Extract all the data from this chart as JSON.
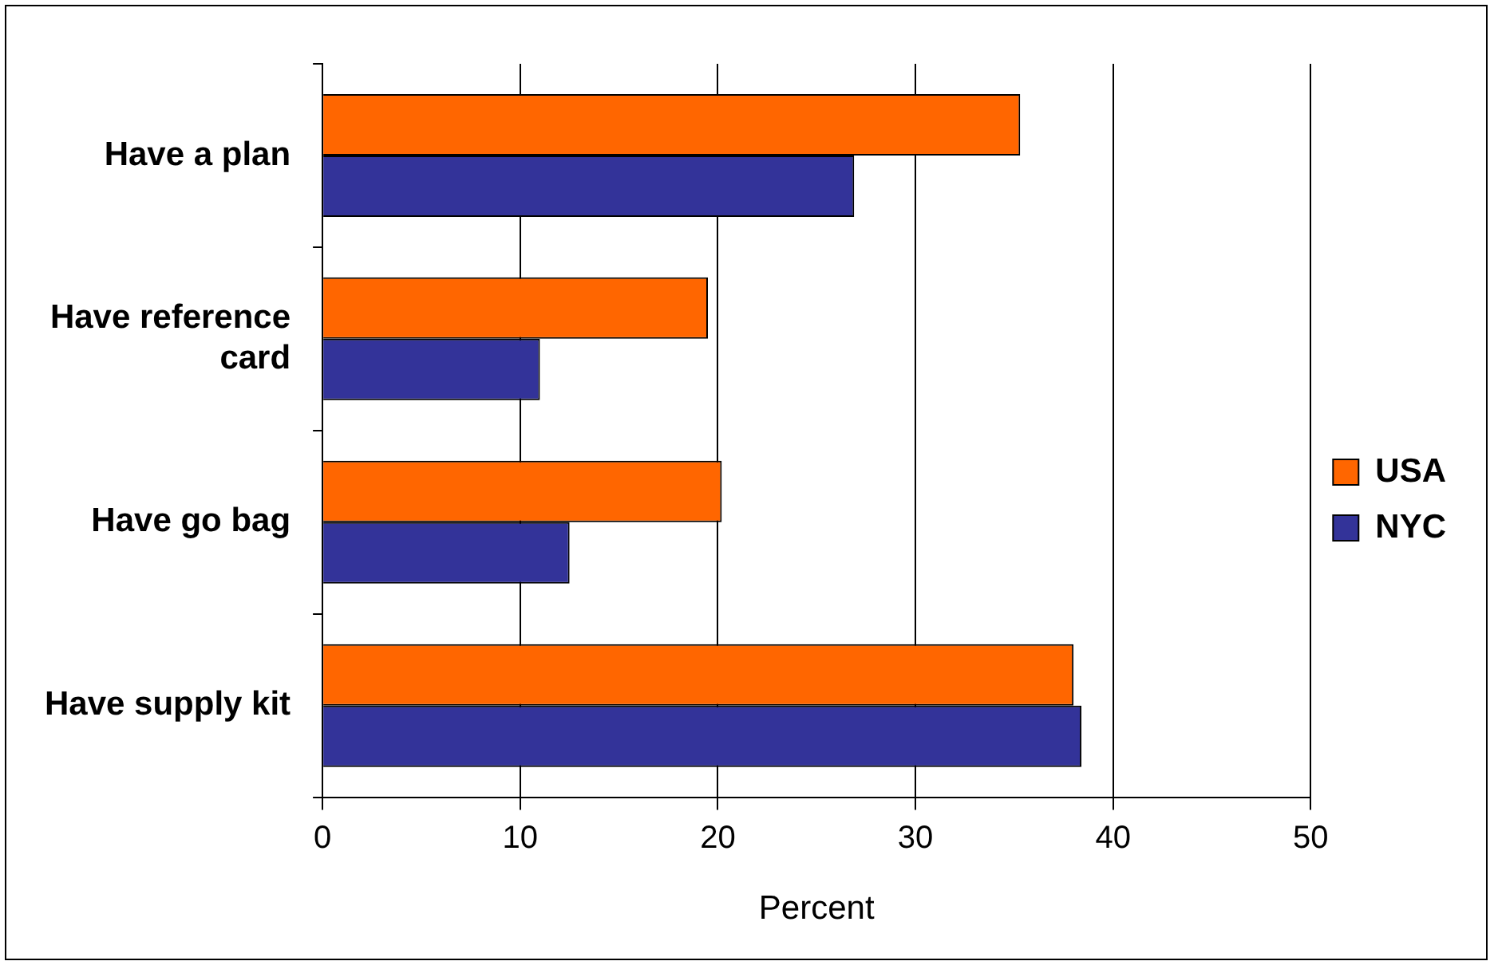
{
  "chart_data": {
    "type": "bar",
    "orientation": "horizontal",
    "xlabel": "Percent",
    "categories": [
      "Have a plan",
      "Have reference card",
      "Have go bag",
      "Have supply kit"
    ],
    "series": [
      {
        "name": "USA",
        "color": "#ff6600",
        "values": [
          35.3,
          19.5,
          20.2,
          38.0
        ]
      },
      {
        "name": "NYC",
        "color": "#333399",
        "values": [
          26.9,
          11.0,
          12.5,
          38.4
        ]
      }
    ],
    "xlim": [
      0,
      50
    ],
    "xticks": [
      0,
      10,
      20,
      30,
      40,
      50
    ],
    "grid": "x",
    "legend": "right"
  }
}
